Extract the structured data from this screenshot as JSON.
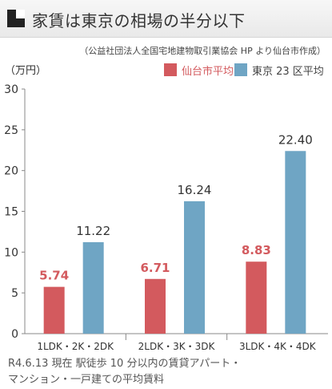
{
  "header": {
    "title": "家賃は東京の相場の半分以下",
    "icon": "black-white-squares-icon"
  },
  "source_note": "（公益社団法人全国宅地建物取引業協会 HP より仙台市作成）",
  "footer": {
    "line1": "R4.6.13 現在 駅徒歩 10 分以内の賃貸アパート・",
    "line2": "マンション・一戸建ての平均賃料"
  },
  "colors": {
    "sendai": "#d35a5e",
    "tokyo": "#6fa5c4",
    "header_bg": "#eeeeee"
  },
  "chart_data": {
    "type": "bar",
    "ylabel": "（万円）",
    "ylim": [
      0,
      30
    ],
    "yticks": [
      "0",
      "5",
      "10",
      "15",
      "20",
      "25",
      "30"
    ],
    "grid": false,
    "legend_position": "top-right",
    "categories": [
      "1LDK・2K・2DK",
      "2LDK・3K・3DK",
      "3LDK・4K・4DK"
    ],
    "series": [
      {
        "name": "仙台市平均",
        "color": "#d35a5e",
        "values": [
          5.74,
          6.71,
          8.83
        ],
        "labels": [
          "5.74",
          "6.71",
          "8.83"
        ]
      },
      {
        "name": "東京 23 区平均",
        "color": "#6fa5c4",
        "values": [
          11.22,
          16.24,
          22.4
        ],
        "labels": [
          "11.22",
          "16.24",
          "22.40"
        ]
      }
    ]
  }
}
